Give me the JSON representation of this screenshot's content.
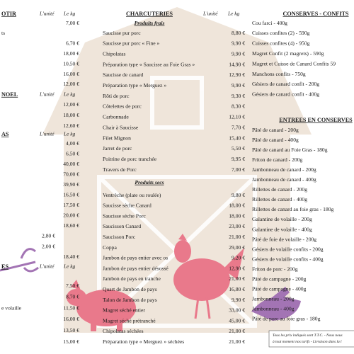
{
  "left_column": {
    "sections": [
      {
        "heading": "OTIR",
        "unit_header": "L'unité",
        "kg_header": "Le kg",
        "rows": [
          {
            "kg": "7,00 €"
          },
          {
            "label": "ts"
          },
          {
            "kg": "6,70 €"
          },
          {
            "kg": "18,00 €"
          },
          {
            "kg": "10,50 €"
          },
          {
            "kg": "16,00 €"
          },
          {
            "kg": "12,00 €"
          }
        ]
      },
      {
        "heading": "NOEL",
        "unit_header": "L'unité",
        "kg_header": "Le kg",
        "rows": [
          {
            "kg": "12,00 €"
          },
          {
            "kg": "18,00 €"
          },
          {
            "kg": "12,60 €"
          }
        ]
      },
      {
        "heading": "AS",
        "unit_header": "L'unité",
        "kg_header": "Le kg",
        "rows": [
          {
            "kg": "4,00 €"
          },
          {
            "kg": "6,50 €"
          },
          {
            "kg": "40,00 €"
          },
          {
            "kg": "70,00 €"
          },
          {
            "kg": "39,90 €"
          },
          {
            "kg": "16,50 €"
          },
          {
            "kg": "17,50 €"
          },
          {
            "kg": "20,00 €"
          },
          {
            "kg": "18,60 €"
          },
          {
            "unit": "2,80 €"
          },
          {
            "unit": "2,00 €"
          },
          {
            "kg": "18,40 €"
          }
        ]
      },
      {
        "heading": "ES",
        "unit_header": "L'unité",
        "kg_header": "Le kg",
        "rows": [
          {
            "kg": "7,50 €"
          },
          {
            "kg": "8,70 €"
          },
          {
            "label": "e volaille",
            "kg": "11,50 €"
          },
          {
            "kg": "16,00 €"
          },
          {
            "kg": "13,50 €"
          },
          {
            "kg": "15,00 €"
          }
        ]
      }
    ]
  },
  "charcuteries": {
    "heading": "CHARCUTERIES",
    "unit_header": "L'unité",
    "kg_header": "Le kg",
    "groups": [
      {
        "title": "Produits frais",
        "rows": [
          {
            "label": "Saucisse pur porc",
            "kg": "8,80 €"
          },
          {
            "label": "Saucisse pur porc « Fine »",
            "kg": "9,90 €"
          },
          {
            "label": "Chipolatas",
            "kg": "9,90 €"
          },
          {
            "label": "Préparation type « Saucisse au Foie Gras »",
            "kg": "14,90 €"
          },
          {
            "label": "Saucisse de canard",
            "kg": "12,90 €"
          },
          {
            "label": "Préparation type « Merguez »",
            "kg": "9,90 €"
          },
          {
            "label": "Rôti de porc",
            "kg": "9,30 €"
          },
          {
            "label": "Côtelettes de porc",
            "kg": "8,30 €"
          },
          {
            "label": "Carbonnade",
            "kg": "12,10 €"
          },
          {
            "label": "Chair à Saucisse",
            "kg": "7,70 €"
          },
          {
            "label": "Filet Mignon",
            "kg": "15,40 €"
          },
          {
            "label": "Jarret de porc",
            "kg": "5,50 €"
          },
          {
            "label": "Poitrine de porc tranchée",
            "kg": "9,95 €"
          },
          {
            "label": "Travers de Porc",
            "kg": "7,00 €"
          }
        ]
      },
      {
        "title": "Produits secs",
        "rows": [
          {
            "label": "Ventrèche (plate ou roulée)",
            "kg": "9,80 €"
          },
          {
            "label": "Saucisse sèche Canard",
            "kg": "18,00 €"
          },
          {
            "label": "Saucisse sèche Porc",
            "kg": "18,00 €"
          },
          {
            "label": "Saucisson Canard",
            "kg": "23,00 €"
          },
          {
            "label": "Saucisson Porc",
            "kg": "21,00 €"
          },
          {
            "label": "Coppa",
            "kg": "29,00 €"
          },
          {
            "label": "Jambon de pays entier avec os",
            "kg": "9,20 €"
          },
          {
            "label": "Jambon de pays entier désossé",
            "kg": "12,90 €"
          },
          {
            "label": "Jambon de pays en tranche",
            "kg": "21,00 €"
          },
          {
            "label": "Quart de Jambon de pays",
            "kg": "16,80 €"
          },
          {
            "label": "Talon de Jambon de pays",
            "kg": "9,90 €"
          },
          {
            "label": "Magret séché entier",
            "kg": "33,00 €"
          },
          {
            "label": "Magret séché prétranché",
            "kg": "45,00 €"
          },
          {
            "label": "Chipolatas séchées",
            "kg": "21,00 €"
          },
          {
            "label": "Préparation type « Merguez » séchées",
            "kg": "21,00 €"
          }
        ]
      }
    ]
  },
  "conserves_confits": {
    "heading": "CONSERVES - CONFITS",
    "items": [
      "Cou farci - 400g",
      "Cuisses confites (2) - 590g",
      "Cuisses confites (4) - 950g",
      "Magret Confit (2 magrets) - 590g",
      "Magret et Cuisse de Canard Confits 59",
      "Manchons confits - 750g",
      "Gésiers de canard confit - 200g",
      "Gésiers de canard confit - 400g"
    ]
  },
  "entrees_conserves": {
    "heading": "ENTREES EN CONSERVES",
    "items": [
      "Pâté de canard - 200g",
      "Pâté de canard - 400g",
      "Pâté de canard au Foie Gras - 180g",
      "Friton de canard - 200g",
      "Jambonneau de canard - 200g",
      "Jambonneau de canard - 400g",
      "Rillettes de canard - 200g",
      "Rillettes de canard - 400g",
      "Rillettes de canard au foie gras - 180g",
      "Galantine de volaille - 200g",
      "Galantine de volaille - 400g",
      "Pâté de foie de volaille - 200g",
      "Gésiers de volaille confits - 200g",
      "Gésiers de volaille confits - 400g",
      "Friton de porc - 200g",
      "Pâté de campagne - 200g",
      "Pâté de campagne - 400g",
      "Jambonneau - 200g",
      "Jambonneau - 400g",
      "Pâté de porc au foie gras - 180g"
    ]
  },
  "footer": {
    "lines": [
      "Tous les prix indiqués sont T.T.C. - Nous nous",
      "à tout moment nos tarifs - Livraison dans la l"
    ]
  }
}
